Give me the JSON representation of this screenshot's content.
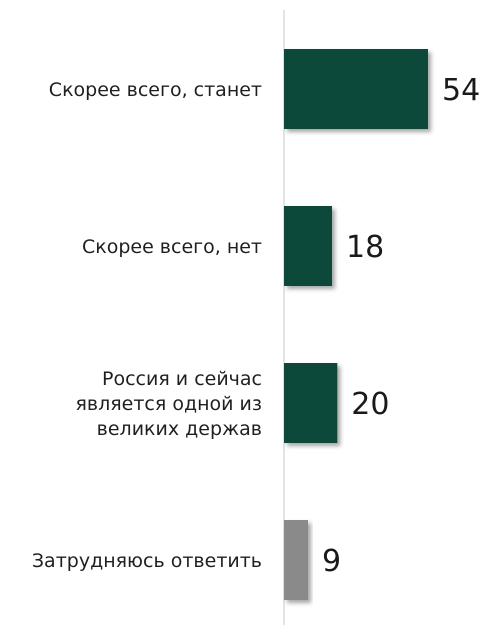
{
  "chart_data": {
    "type": "bar",
    "orientation": "horizontal",
    "categories": [
      "Скорее всего, станет",
      "Скорее всего, нет",
      "Россия и сейчас является одной из великих держав",
      "Затрудняюсь ответить"
    ],
    "category_lines": [
      [
        "Скорее всего, станет"
      ],
      [
        "Скорее всего, нет"
      ],
      [
        "Россия и сейчас",
        "является одной из",
        "великих держав"
      ],
      [
        "Затрудняюсь ответить"
      ]
    ],
    "values": [
      54,
      18,
      20,
      9
    ],
    "bar_colors": [
      "#0b4a3a",
      "#0b4a3a",
      "#0b4a3a",
      "#8a8a8a"
    ],
    "title": "",
    "xlabel": "",
    "ylabel": "",
    "xlim": [
      0,
      54
    ],
    "grid": false,
    "legend": "none"
  }
}
